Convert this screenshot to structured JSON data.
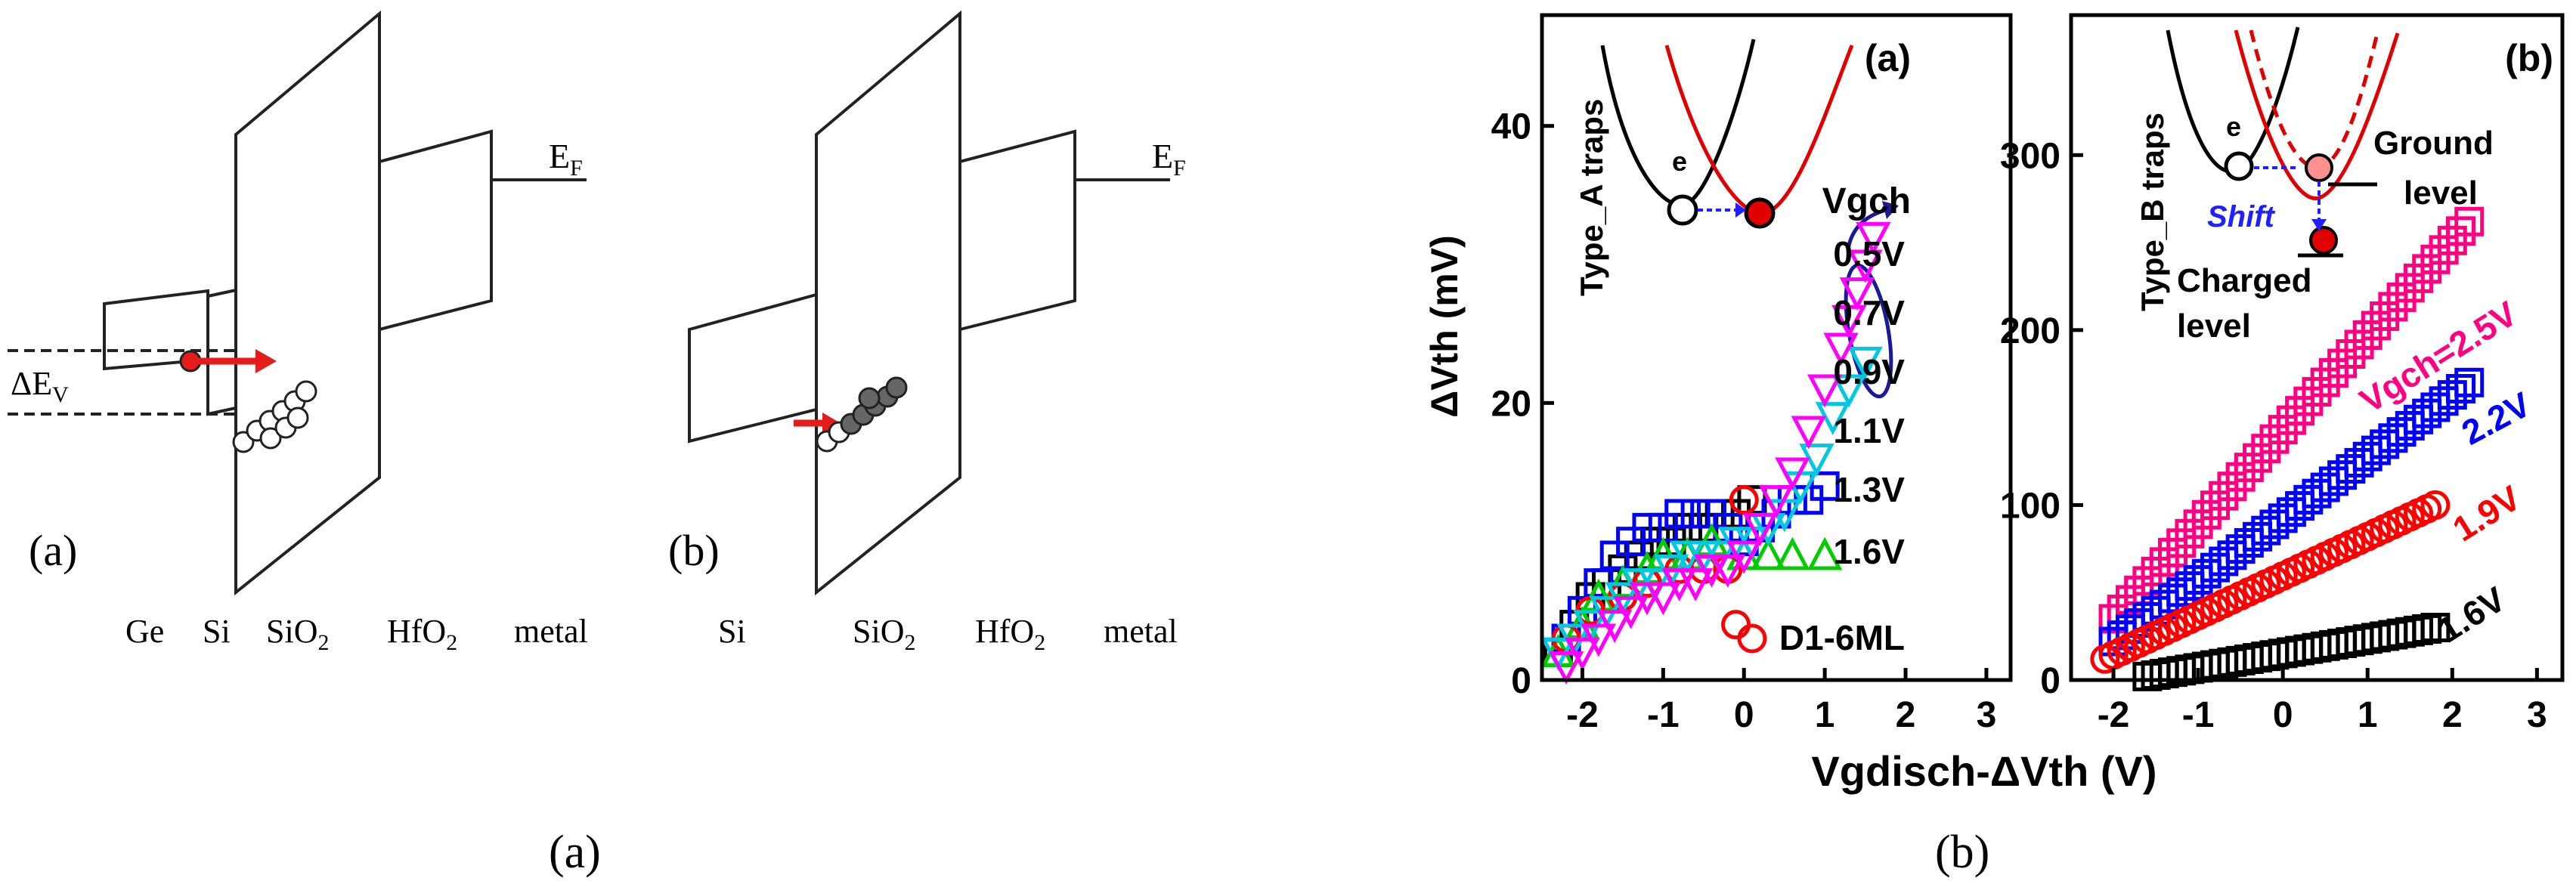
{
  "schematics": {
    "left": {
      "label": "(a)",
      "fermi_label": "E",
      "fermi_sub": "F",
      "offset_label": "ΔE",
      "offset_sub": "V",
      "layers": [
        {
          "text": "Ge"
        },
        {
          "text": "Si"
        },
        {
          "text": "SiO",
          "sub": "2"
        },
        {
          "text": "HfO",
          "sub": "2"
        },
        {
          "text": "metal"
        }
      ]
    },
    "right": {
      "label": "(b)",
      "fermi_label": "E",
      "fermi_sub": "F",
      "layers": [
        {
          "text": "Si"
        },
        {
          "text": "SiO",
          "sub": "2"
        },
        {
          "text": "HfO",
          "sub": "2"
        },
        {
          "text": "metal"
        }
      ]
    }
  },
  "captions": {
    "left": "(a)",
    "right": "(b)"
  },
  "chart_data": [
    {
      "type": "scatter",
      "panel_label": "(a)",
      "ylabel": "ΔVth (mV)",
      "xlabel": "Vgdisch-ΔVth (V)",
      "xlim": [
        -2.5,
        3.3
      ],
      "ylim": [
        0,
        48
      ],
      "x_ticks": [
        "-2",
        "-1",
        "0",
        "1",
        "2",
        "3"
      ],
      "y_ticks": [
        "0",
        "20",
        "40"
      ],
      "inset_label": "Type_A traps",
      "inset_electron_label": "e",
      "legend_title": "Vgch",
      "legend": [
        "0.5V",
        "0.7V",
        "0.9V",
        "1.1V",
        "1.3V",
        "1.6V"
      ],
      "sample_label": "D1-6ML",
      "series": [
        {
          "name": "1.6V",
          "color": "#000000",
          "marker": "square",
          "points": [
            [
              -2.3,
              2
            ],
            [
              -2.1,
              4
            ],
            [
              -1.9,
              6
            ],
            [
              -1.7,
              7
            ],
            [
              -1.5,
              8
            ],
            [
              -1.3,
              9
            ],
            [
              -1.1,
              10
            ],
            [
              -0.9,
              10
            ],
            [
              -0.7,
              11
            ],
            [
              -0.5,
              11
            ],
            [
              -0.3,
              12
            ],
            [
              -0.1,
              12
            ],
            [
              0.1,
              13
            ]
          ]
        },
        {
          "name": "1.3V",
          "color": "#0000ff",
          "marker": "square",
          "points": [
            [
              -2.2,
              3
            ],
            [
              -2.0,
              5
            ],
            [
              -1.8,
              7
            ],
            [
              -1.6,
              9
            ],
            [
              -1.4,
              10
            ],
            [
              -1.2,
              11
            ],
            [
              -1.0,
              11
            ],
            [
              -0.8,
              12
            ],
            [
              -0.6,
              12
            ],
            [
              -0.4,
              12
            ],
            [
              -0.2,
              11
            ],
            [
              0.0,
              10
            ],
            [
              0.2,
              11
            ],
            [
              0.4,
              12
            ],
            [
              0.6,
              13
            ],
            [
              0.8,
              13
            ],
            [
              1.0,
              14
            ]
          ]
        },
        {
          "name": "1.1V",
          "color": "#00cc00",
          "marker": "triangle-up",
          "points": [
            [
              -2.3,
              2
            ],
            [
              -2.0,
              4
            ],
            [
              -1.8,
              6
            ],
            [
              -1.5,
              7
            ],
            [
              -1.2,
              8
            ],
            [
              -1.0,
              9
            ],
            [
              -0.7,
              9
            ],
            [
              -0.4,
              10
            ],
            [
              0.0,
              9
            ],
            [
              0.3,
              9
            ],
            [
              0.6,
              9
            ],
            [
              1.0,
              9
            ]
          ]
        },
        {
          "name": "0.9V",
          "color": "#ff0000",
          "marker": "circle",
          "points": [
            [
              -2.2,
              3
            ],
            [
              -1.9,
              5
            ],
            [
              -1.5,
              6
            ],
            [
              -1.2,
              7
            ],
            [
              -0.8,
              8
            ],
            [
              -0.5,
              8
            ],
            [
              -0.2,
              8
            ],
            [
              -0.1,
              4
            ],
            [
              0.0,
              13
            ],
            [
              0.1,
              3
            ]
          ]
        },
        {
          "name": "0.7V",
          "color": "#00c8e0",
          "marker": "triangle-down",
          "points": [
            [
              -2.3,
              2
            ],
            [
              -2.1,
              3
            ],
            [
              -1.9,
              4
            ],
            [
              -1.7,
              5
            ],
            [
              -1.5,
              6
            ],
            [
              -1.3,
              7
            ],
            [
              -1.1,
              7
            ],
            [
              -0.9,
              8
            ],
            [
              -0.7,
              9
            ],
            [
              -0.5,
              9
            ],
            [
              -0.3,
              9
            ],
            [
              -0.1,
              10
            ],
            [
              0.1,
              10
            ],
            [
              0.3,
              11
            ],
            [
              0.5,
              12
            ],
            [
              0.7,
              14
            ],
            [
              0.9,
              16
            ],
            [
              1.1,
              19
            ],
            [
              1.3,
              21
            ],
            [
              1.5,
              23
            ]
          ]
        },
        {
          "name": "0.5V",
          "color": "#ff00ff",
          "marker": "triangle-down",
          "points": [
            [
              -2.2,
              1
            ],
            [
              -2.0,
              2
            ],
            [
              -1.8,
              3
            ],
            [
              -1.6,
              4
            ],
            [
              -1.4,
              5
            ],
            [
              -1.2,
              6
            ],
            [
              -1.0,
              6
            ],
            [
              -0.8,
              7
            ],
            [
              -0.6,
              7
            ],
            [
              -0.4,
              8
            ],
            [
              -0.2,
              8
            ],
            [
              0.0,
              9
            ],
            [
              0.2,
              11
            ],
            [
              0.4,
              13
            ],
            [
              0.6,
              15
            ],
            [
              0.8,
              18
            ],
            [
              1.0,
              21
            ],
            [
              1.2,
              24
            ],
            [
              1.3,
              26
            ],
            [
              1.4,
              28
            ],
            [
              1.5,
              30
            ],
            [
              1.6,
              32
            ]
          ]
        }
      ]
    },
    {
      "type": "scatter",
      "panel_label": "(b)",
      "xlim": [
        -2.5,
        3.3
      ],
      "ylim": [
        0,
        380
      ],
      "x_ticks": [
        "-2",
        "-1",
        "0",
        "1",
        "2",
        "3"
      ],
      "y_ticks": [
        "0",
        "100",
        "200",
        "300"
      ],
      "inset_label": "Type_B traps",
      "inset_electron_label": "e",
      "inset_shift_label": "Shift",
      "inset_ground_label_1": "Ground",
      "inset_ground_label_2": "level",
      "inset_charged_label_1": "Charged",
      "inset_charged_label_2": "level",
      "series_labels": [
        "Vgch=2.5V",
        "2.2V",
        "1.9V",
        "1.6V"
      ],
      "series": [
        {
          "name": "Vgch=2.5V",
          "color": "#ff0080",
          "marker": "square",
          "x": [
            -2.0,
            2.2
          ],
          "y": [
            35,
            262
          ]
        },
        {
          "name": "2.2V",
          "color": "#0000ff",
          "marker": "square",
          "x": [
            -2.0,
            2.2
          ],
          "y": [
            22,
            170
          ]
        },
        {
          "name": "1.9V",
          "color": "#ff0000",
          "marker": "circle",
          "x": [
            -2.1,
            1.8
          ],
          "y": [
            12,
            100
          ]
        },
        {
          "name": "1.6V",
          "color": "#000000",
          "marker": "square",
          "x": [
            -1.6,
            1.8
          ],
          "y": [
            2,
            30
          ]
        }
      ]
    }
  ]
}
